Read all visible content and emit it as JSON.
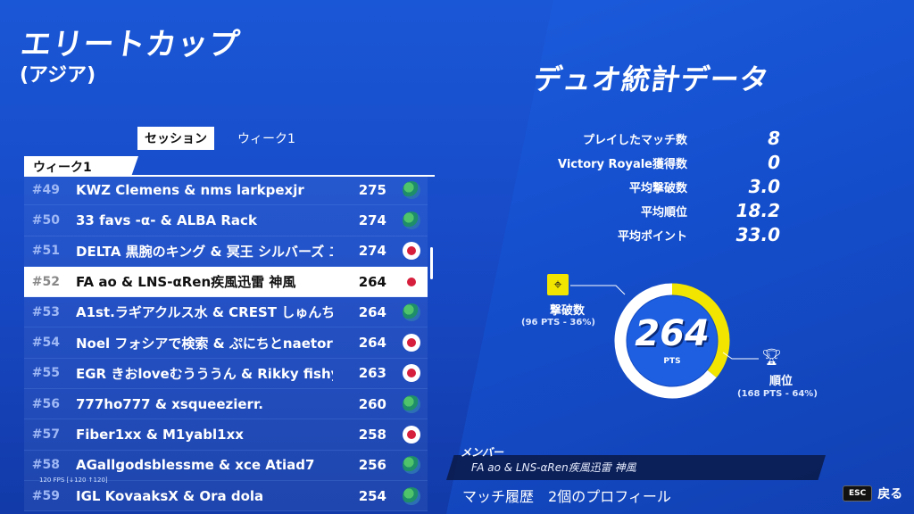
{
  "header": {
    "title": "エリートカップ",
    "subtitle": "(アジア)"
  },
  "tabs": [
    {
      "label": "セッション",
      "active": true
    },
    {
      "label": "ウィーク1",
      "active": false
    }
  ],
  "week_header": "ウィーク1",
  "leaderboard": [
    {
      "rank": "#49",
      "name": "KWZ Clemens & nms larkpexjr",
      "points": "275",
      "flag": "globe"
    },
    {
      "rank": "#50",
      "name": "33 favs -α- & ALBA Rack",
      "points": "274",
      "flag": "globe"
    },
    {
      "rank": "#51",
      "name": "DELTA 黒腕のキング & 冥王 シルバーズ エイミー",
      "points": "274",
      "flag": "jp"
    },
    {
      "rank": "#52",
      "name": "FA ao & LNS-αRen疾風迅雷 神風",
      "points": "264",
      "flag": "jp",
      "selected": true
    },
    {
      "rank": "#53",
      "name": "A1st.ラギアクルス水 & CREST しゅんちゃん",
      "points": "264",
      "flag": "globe"
    },
    {
      "rank": "#54",
      "name": "Noel フォシアで検索 & ぷにちとnaetor",
      "points": "264",
      "flag": "jp"
    },
    {
      "rank": "#55",
      "name": "EGR きおloveむうううん & Rikky fishy",
      "points": "263",
      "flag": "jp"
    },
    {
      "rank": "#56",
      "name": "777ho777 & xsqueezierr.",
      "points": "260",
      "flag": "globe"
    },
    {
      "rank": "#57",
      "name": "Fiber1xx & M1yabl1xx",
      "points": "258",
      "flag": "jp"
    },
    {
      "rank": "#58",
      "name": "AGallgodsblessme & xce Atiad7",
      "points": "256",
      "flag": "globe"
    },
    {
      "rank": "#59",
      "name": "IGL KovaaksX & Ora dola",
      "points": "254",
      "flag": "globe"
    }
  ],
  "fps_text": "120 FPS [↓120 ↑120]",
  "stats": {
    "title": "デュオ統計データ",
    "rows": [
      {
        "label": "プレイしたマッチ数",
        "value": "8"
      },
      {
        "label": "Victory Royale獲得数",
        "value": "0"
      },
      {
        "label": "平均撃破数",
        "value": "3.0"
      },
      {
        "label": "平均順位",
        "value": "18.2"
      },
      {
        "label": "平均ポイント",
        "value": "33.0"
      }
    ],
    "total_points": "264",
    "points_unit": "PTS",
    "elims": {
      "label": "撃破数",
      "detail": "(96 PTS - 36%)",
      "fraction": 0.36,
      "color": "#f2e600"
    },
    "placement": {
      "label": "順位",
      "detail": "(168 PTS - 64%)",
      "fraction": 0.64,
      "color": "#ffffff"
    }
  },
  "members": {
    "label": "メンバー",
    "name": "FA ao & LNS-αRen疾風迅雷 神風"
  },
  "bottom": {
    "match_history": "マッチ履歴",
    "profiles": "2個のプロフィール"
  },
  "esc": {
    "key": "ESC",
    "label": "戻る"
  }
}
